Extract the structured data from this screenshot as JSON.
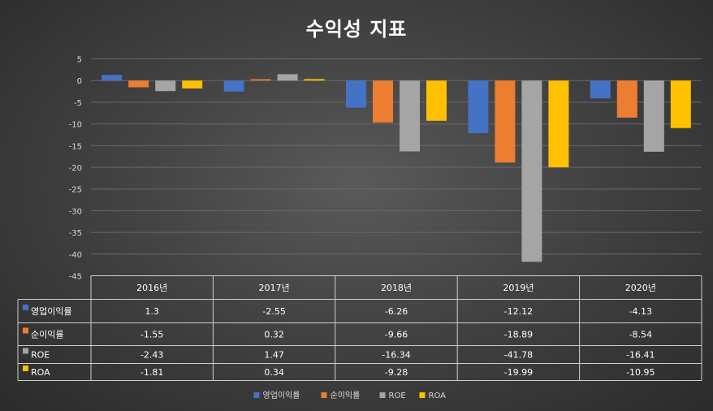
{
  "chart_data": {
    "type": "bar",
    "title": "수익성 지표",
    "categories": [
      "2016년",
      "2017년",
      "2018년",
      "2019년",
      "2020년"
    ],
    "ylim": [
      -45,
      5
    ],
    "yticks": [
      5,
      0,
      -5,
      -10,
      -15,
      -20,
      -25,
      -30,
      -35,
      -40,
      -45
    ],
    "grid": true,
    "legend_position": "bottom",
    "data_table": true,
    "series": [
      {
        "name": "영업이익률",
        "color": "#4472C4",
        "values": [
          1.3,
          -2.55,
          -6.26,
          -12.12,
          -4.13
        ],
        "labels": [
          "1.3",
          "-2.55",
          "-6.26",
          "-12.12",
          "-4.13"
        ]
      },
      {
        "name": "순이익률",
        "color": "#ED7D31",
        "values": [
          -1.55,
          0.32,
          -9.66,
          -18.89,
          -8.54
        ],
        "labels": [
          "-1.55",
          "0.32",
          "-9.66",
          "-18.89",
          "-8.54"
        ]
      },
      {
        "name": "ROE",
        "color": "#A5A5A5",
        "values": [
          -2.43,
          1.47,
          -16.34,
          -41.78,
          -16.41
        ],
        "labels": [
          "-2.43",
          "1.47",
          "-16.34",
          "-41.78",
          "-16.41"
        ]
      },
      {
        "name": "ROA",
        "color": "#FFC000",
        "values": [
          -1.81,
          0.34,
          -9.28,
          -19.99,
          -10.95
        ],
        "labels": [
          "-1.81",
          "0.34",
          "-9.28",
          "-19.99",
          "-10.95"
        ]
      }
    ]
  }
}
